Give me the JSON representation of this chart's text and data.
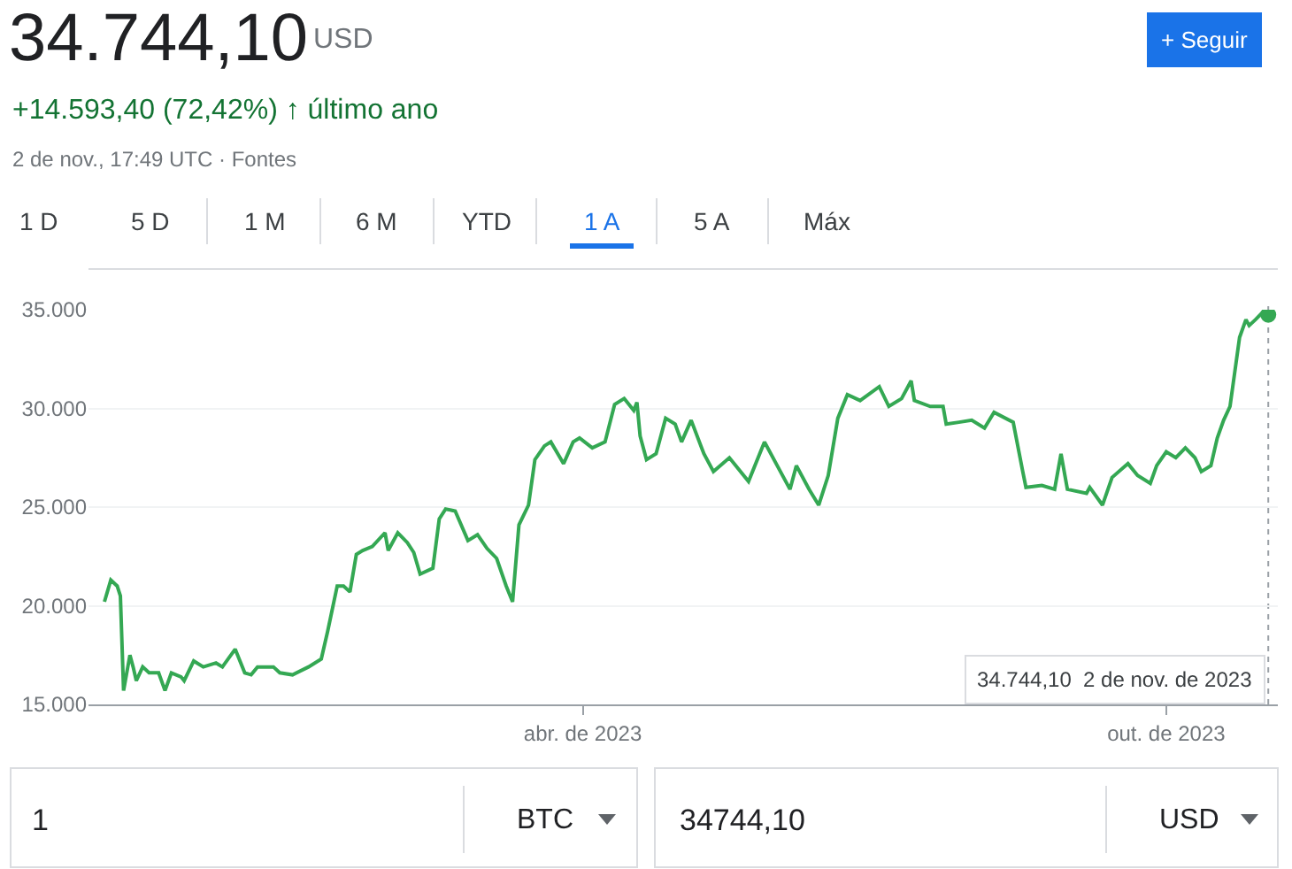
{
  "chart_data": {
    "type": "line",
    "title": "34.744,10",
    "subtitle": "+14.593,40 (72,42%) ↑ último ano",
    "annotations": [
      "USD",
      "2 de nov., 17:49 UTC · Fontes",
      "+ Seguir",
      "1 D",
      "5 D",
      "1 M",
      "6 M",
      "YTD",
      "1 A",
      "5 A",
      "Máx",
      "1",
      "BTC",
      "34744,10",
      "USD",
      "34.744,10  2 de nov. de 2023"
    ],
    "x": [
      "2022-11-02",
      "2022-11-04",
      "2022-11-06",
      "2022-11-07",
      "2022-11-08",
      "2022-11-10",
      "2022-11-11",
      "2022-11-12",
      "2022-11-14",
      "2022-11-16",
      "2022-11-19",
      "2022-11-21",
      "2022-11-23",
      "2022-11-26",
      "2022-11-27",
      "2022-11-30",
      "2022-12-03",
      "2022-12-07",
      "2022-12-09",
      "2022-12-13",
      "2022-12-16",
      "2022-12-18",
      "2022-12-20",
      "2022-12-25",
      "2022-12-27",
      "2022-12-31",
      "2023-01-05",
      "2023-01-09",
      "2023-01-11",
      "2023-01-14",
      "2023-01-16",
      "2023-01-18",
      "2023-01-20",
      "2023-01-22",
      "2023-01-25",
      "2023-01-29",
      "2023-01-30",
      "2023-02-02",
      "2023-02-05",
      "2023-02-07",
      "2023-02-09",
      "2023-02-13",
      "2023-02-15",
      "2023-02-17",
      "2023-02-20",
      "2023-02-24",
      "2023-02-27",
      "2023-03-02",
      "2023-03-05",
      "2023-03-08",
      "2023-03-10",
      "2023-03-12",
      "2023-03-15",
      "2023-03-17",
      "2023-03-20",
      "2023-03-22",
      "2023-03-26",
      "2023-03-29",
      "2023-03-31",
      "2023-04-04",
      "2023-04-08",
      "2023-04-11",
      "2023-04-14",
      "2023-04-17",
      "2023-04-18",
      "2023-04-19",
      "2023-04-21",
      "2023-04-24",
      "2023-04-27",
      "2023-04-30",
      "2023-05-02",
      "2023-05-05",
      "2023-05-09",
      "2023-05-12",
      "2023-05-17",
      "2023-05-23",
      "2023-05-28",
      "2023-06-02",
      "2023-06-05",
      "2023-06-07",
      "2023-06-11",
      "2023-06-14",
      "2023-06-17",
      "2023-06-20",
      "2023-06-23",
      "2023-06-27",
      "2023-07-03",
      "2023-07-06",
      "2023-07-10",
      "2023-07-13",
      "2023-07-14",
      "2023-07-19",
      "2023-07-23",
      "2023-07-24",
      "2023-07-28",
      "2023-08-01",
      "2023-08-05",
      "2023-08-08",
      "2023-08-14",
      "2023-08-17",
      "2023-08-18",
      "2023-08-23",
      "2023-08-27",
      "2023-08-29",
      "2023-08-31",
      "2023-09-06",
      "2023-09-07",
      "2023-09-11",
      "2023-09-14",
      "2023-09-19",
      "2023-09-22",
      "2023-09-26",
      "2023-09-28",
      "2023-10-01",
      "2023-10-04",
      "2023-10-07",
      "2023-10-10",
      "2023-10-12",
      "2023-10-15",
      "2023-10-17",
      "2023-10-19",
      "2023-10-21",
      "2023-10-24",
      "2023-10-26",
      "2023-10-27",
      "2023-10-29",
      "2023-11-01",
      "2023-11-02"
    ],
    "series": [
      {
        "color": "#34a853",
        "values": [
          20200,
          21300,
          21000,
          20500,
          15700,
          17500,
          16900,
          16200,
          16900,
          16600,
          16600,
          15700,
          16600,
          16400,
          16200,
          17200,
          16900,
          17100,
          16900,
          17800,
          16600,
          16500,
          16900,
          16900,
          16600,
          16500,
          16900,
          17300,
          18700,
          21000,
          21000,
          20700,
          22600,
          22800,
          23000,
          23700,
          22800,
          23700,
          23200,
          22700,
          21600,
          21900,
          24400,
          24900,
          24800,
          23300,
          23600,
          22900,
          22400,
          21000,
          20200,
          24100,
          25100,
          27400,
          28100,
          28300,
          27200,
          28300,
          28500,
          28000,
          28300,
          30200,
          30500,
          29900,
          30300,
          28600,
          27400,
          27700,
          29500,
          29200,
          28300,
          29400,
          27700,
          26800,
          27500,
          26300,
          28300,
          26800,
          25900,
          27100,
          25900,
          25100,
          26600,
          29500,
          30700,
          30400,
          31100,
          30100,
          30500,
          31400,
          30400,
          30100,
          30100,
          29200,
          29300,
          29400,
          29000,
          29800,
          29300,
          26800,
          26000,
          26100,
          25900,
          27700,
          25900,
          25700,
          26000,
          25100,
          26500,
          27200,
          26600,
          26200,
          27100,
          27800,
          27500,
          28000,
          27500,
          26800,
          27100,
          28500,
          29400,
          30100,
          33600,
          34500,
          34200,
          34500,
          35000,
          34744.1
        ]
      }
    ],
    "xlim": [
      "2022-10-28",
      "2023-11-05"
    ],
    "xticks": [
      {
        "value": "2023-04-01",
        "label": "abr. de 2023"
      },
      {
        "value": "2023-10-01",
        "label": "out. de 2023"
      }
    ],
    "ylim": [
      15000,
      35000
    ],
    "yticks": [
      {
        "value": 15000,
        "label": "15.000"
      },
      {
        "value": 20000,
        "label": "20.000"
      },
      {
        "value": 25000,
        "label": "25.000"
      },
      {
        "value": 30000,
        "label": "30.000"
      },
      {
        "value": 35000,
        "label": "35.000"
      }
    ],
    "ref_lines": [
      {
        "axis": "x",
        "value": "2023-11-02",
        "color": "#9aa0a6",
        "line_style": "dotted"
      }
    ],
    "grid": "y",
    "marker": "none",
    "line_style": "solid"
  }
}
